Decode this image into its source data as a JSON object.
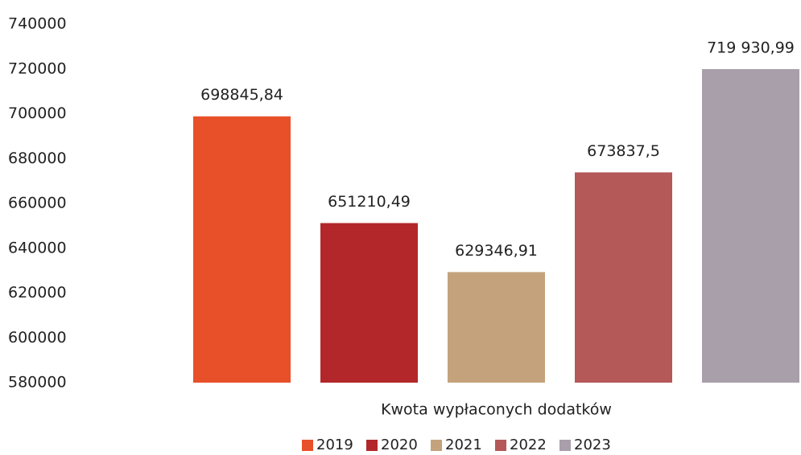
{
  "chart_data": {
    "type": "bar",
    "categories": [
      "Kwota wypłaconych dodatków"
    ],
    "series": [
      {
        "name": "2019",
        "color": "#e8502a",
        "values": [
          698845.84
        ],
        "value_labels": [
          "698845,84"
        ]
      },
      {
        "name": "2020",
        "color": "#b3272a",
        "values": [
          651210.49
        ],
        "value_labels": [
          "651210,49"
        ]
      },
      {
        "name": "2021",
        "color": "#c4a27c",
        "values": [
          629346.91
        ],
        "value_labels": [
          "629346,91"
        ]
      },
      {
        "name": "2022",
        "color": "#b45858",
        "values": [
          673837.5
        ],
        "value_labels": [
          "673837,5"
        ]
      },
      {
        "name": "2023",
        "color": "#a89faa",
        "values": [
          719930.99
        ],
        "value_labels": [
          "719 930,99"
        ]
      }
    ],
    "ylim": [
      580000,
      740000
    ],
    "yticks": [
      580000,
      600000,
      620000,
      640000,
      660000,
      680000,
      700000,
      720000,
      740000
    ],
    "grid": false,
    "legend": "bottom"
  }
}
